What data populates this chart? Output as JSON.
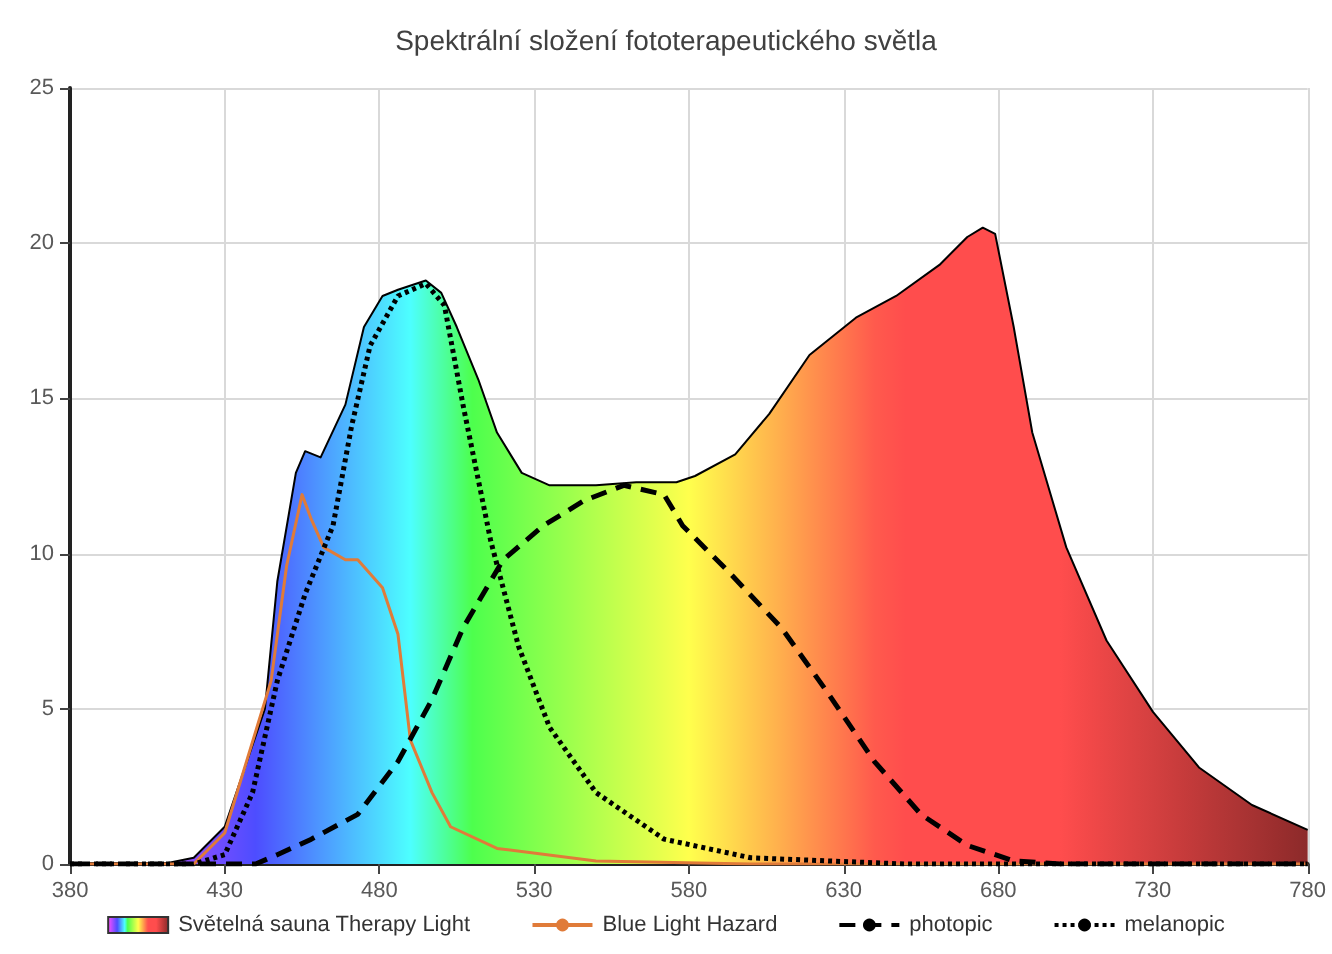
{
  "chart_data": {
    "type": "line",
    "title": "Spektrální složení fototerapeutického světla",
    "xlim": [
      380,
      780
    ],
    "xticks": [
      380,
      430,
      480,
      530,
      580,
      630,
      680,
      730,
      780
    ],
    "ylim": [
      0,
      25
    ],
    "yticks": [
      0,
      5,
      10,
      15,
      20,
      25
    ],
    "grid": true,
    "legend": "bottom",
    "marker": "none",
    "series": [
      {
        "name": "Světelná sauna Therapy Light",
        "type": "area",
        "color": "#000000",
        "x": [
          380,
          410,
          420,
          430,
          443,
          447,
          453,
          456,
          461,
          469,
          475,
          481,
          486,
          495,
          500,
          505,
          512,
          518,
          526,
          535,
          550,
          563,
          576,
          582,
          595,
          606,
          619,
          634,
          647,
          661,
          670,
          675,
          679,
          685,
          691,
          702,
          715,
          730,
          745,
          762,
          780
        ],
        "values": [
          0,
          0,
          0.2,
          1.2,
          5,
          9.1,
          12.6,
          13.3,
          13.1,
          14.8,
          17.3,
          18.3,
          18.5,
          18.8,
          18.4,
          17.3,
          15.6,
          13.9,
          12.6,
          12.2,
          12.2,
          12.3,
          12.3,
          12.5,
          13.2,
          14.5,
          16.4,
          17.6,
          18.3,
          19.3,
          20.2,
          20.5,
          20.3,
          17.3,
          13.9,
          10.2,
          7.2,
          4.9,
          3.1,
          1.9,
          1.1
        ]
      },
      {
        "name": "Blue Light Hazard",
        "color": "#e07b39",
        "x": [
          380,
          420,
          430,
          445,
          450,
          455,
          458,
          462,
          469,
          473,
          481,
          486,
          490,
          497,
          503,
          518,
          550,
          600,
          780
        ],
        "values": [
          0,
          0,
          1,
          5.9,
          9.6,
          11.9,
          11.1,
          10.2,
          9.8,
          9.8,
          8.9,
          7.4,
          4,
          2.3,
          1.2,
          0.5,
          0.1,
          0,
          0
        ],
        "line_style": "solid"
      },
      {
        "name": "photopic",
        "color": "#000000",
        "x": [
          380,
          440,
          447,
          458,
          473,
          486,
          497,
          507,
          520,
          533,
          546,
          559,
          572,
          578,
          593,
          610,
          625,
          640,
          655,
          670,
          685,
          700,
          780
        ],
        "values": [
          0,
          0,
          0.3,
          0.8,
          1.6,
          3.3,
          5.3,
          7.6,
          9.8,
          10.9,
          11.7,
          12.2,
          11.9,
          10.9,
          9.4,
          7.6,
          5.5,
          3.3,
          1.6,
          0.6,
          0.1,
          0,
          0
        ],
        "line_style": "dashed"
      },
      {
        "name": "melanopic",
        "color": "#000000",
        "x": [
          380,
          420,
          430,
          439,
          447,
          456,
          465,
          471,
          477,
          486,
          495,
          501,
          507,
          516,
          525,
          535,
          550,
          572,
          600,
          650,
          780
        ],
        "values": [
          0,
          0,
          0.3,
          2.3,
          5.9,
          8.7,
          10.9,
          14.1,
          16.7,
          18.3,
          18.7,
          18,
          14.8,
          10.4,
          7,
          4.4,
          2.3,
          0.8,
          0.2,
          0,
          0
        ],
        "line_style": "dotted"
      }
    ]
  }
}
